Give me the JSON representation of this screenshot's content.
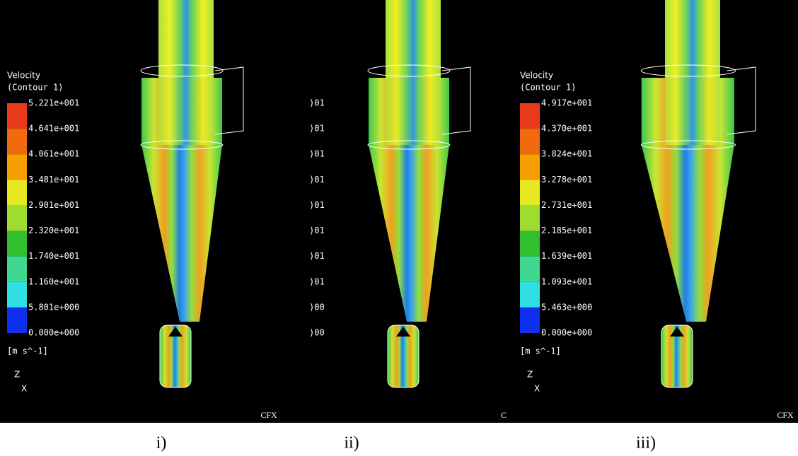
{
  "panels": [
    {
      "legend": {
        "title": "Velocity",
        "subtitle": "(Contour 1)",
        "labels": [
          "5.221e+001",
          "4.641e+001",
          "4.061e+001",
          "3.481e+001",
          "2.901e+001",
          "2.320e+001",
          "1.740e+001",
          "1.160e+001",
          "5.801e+000",
          "0.000e+000"
        ],
        "unit": "[m s^-1]"
      },
      "axes": {
        "z": "Z",
        "x": "X"
      },
      "logo": "CFX",
      "caption": "i)"
    },
    {
      "legend": {
        "labels": [
          ")01",
          ")01",
          ")01",
          ")01",
          ")01",
          ")01",
          ")01",
          ")01",
          ")00",
          ")00"
        ]
      },
      "logo": "C",
      "caption": "ii)"
    },
    {
      "legend": {
        "title": "Velocity",
        "subtitle": "(Contour 1)",
        "labels": [
          "4.917e+001",
          "4.370e+001",
          "3.824e+001",
          "3.278e+001",
          "2.731e+001",
          "2.185e+001",
          "1.639e+001",
          "1.093e+001",
          "5.463e+000",
          "0.000e+000"
        ],
        "unit": "[m s^-1]"
      },
      "axes": {
        "z": "Z",
        "x": "X"
      },
      "logo": "CFX",
      "caption": "iii)"
    }
  ]
}
